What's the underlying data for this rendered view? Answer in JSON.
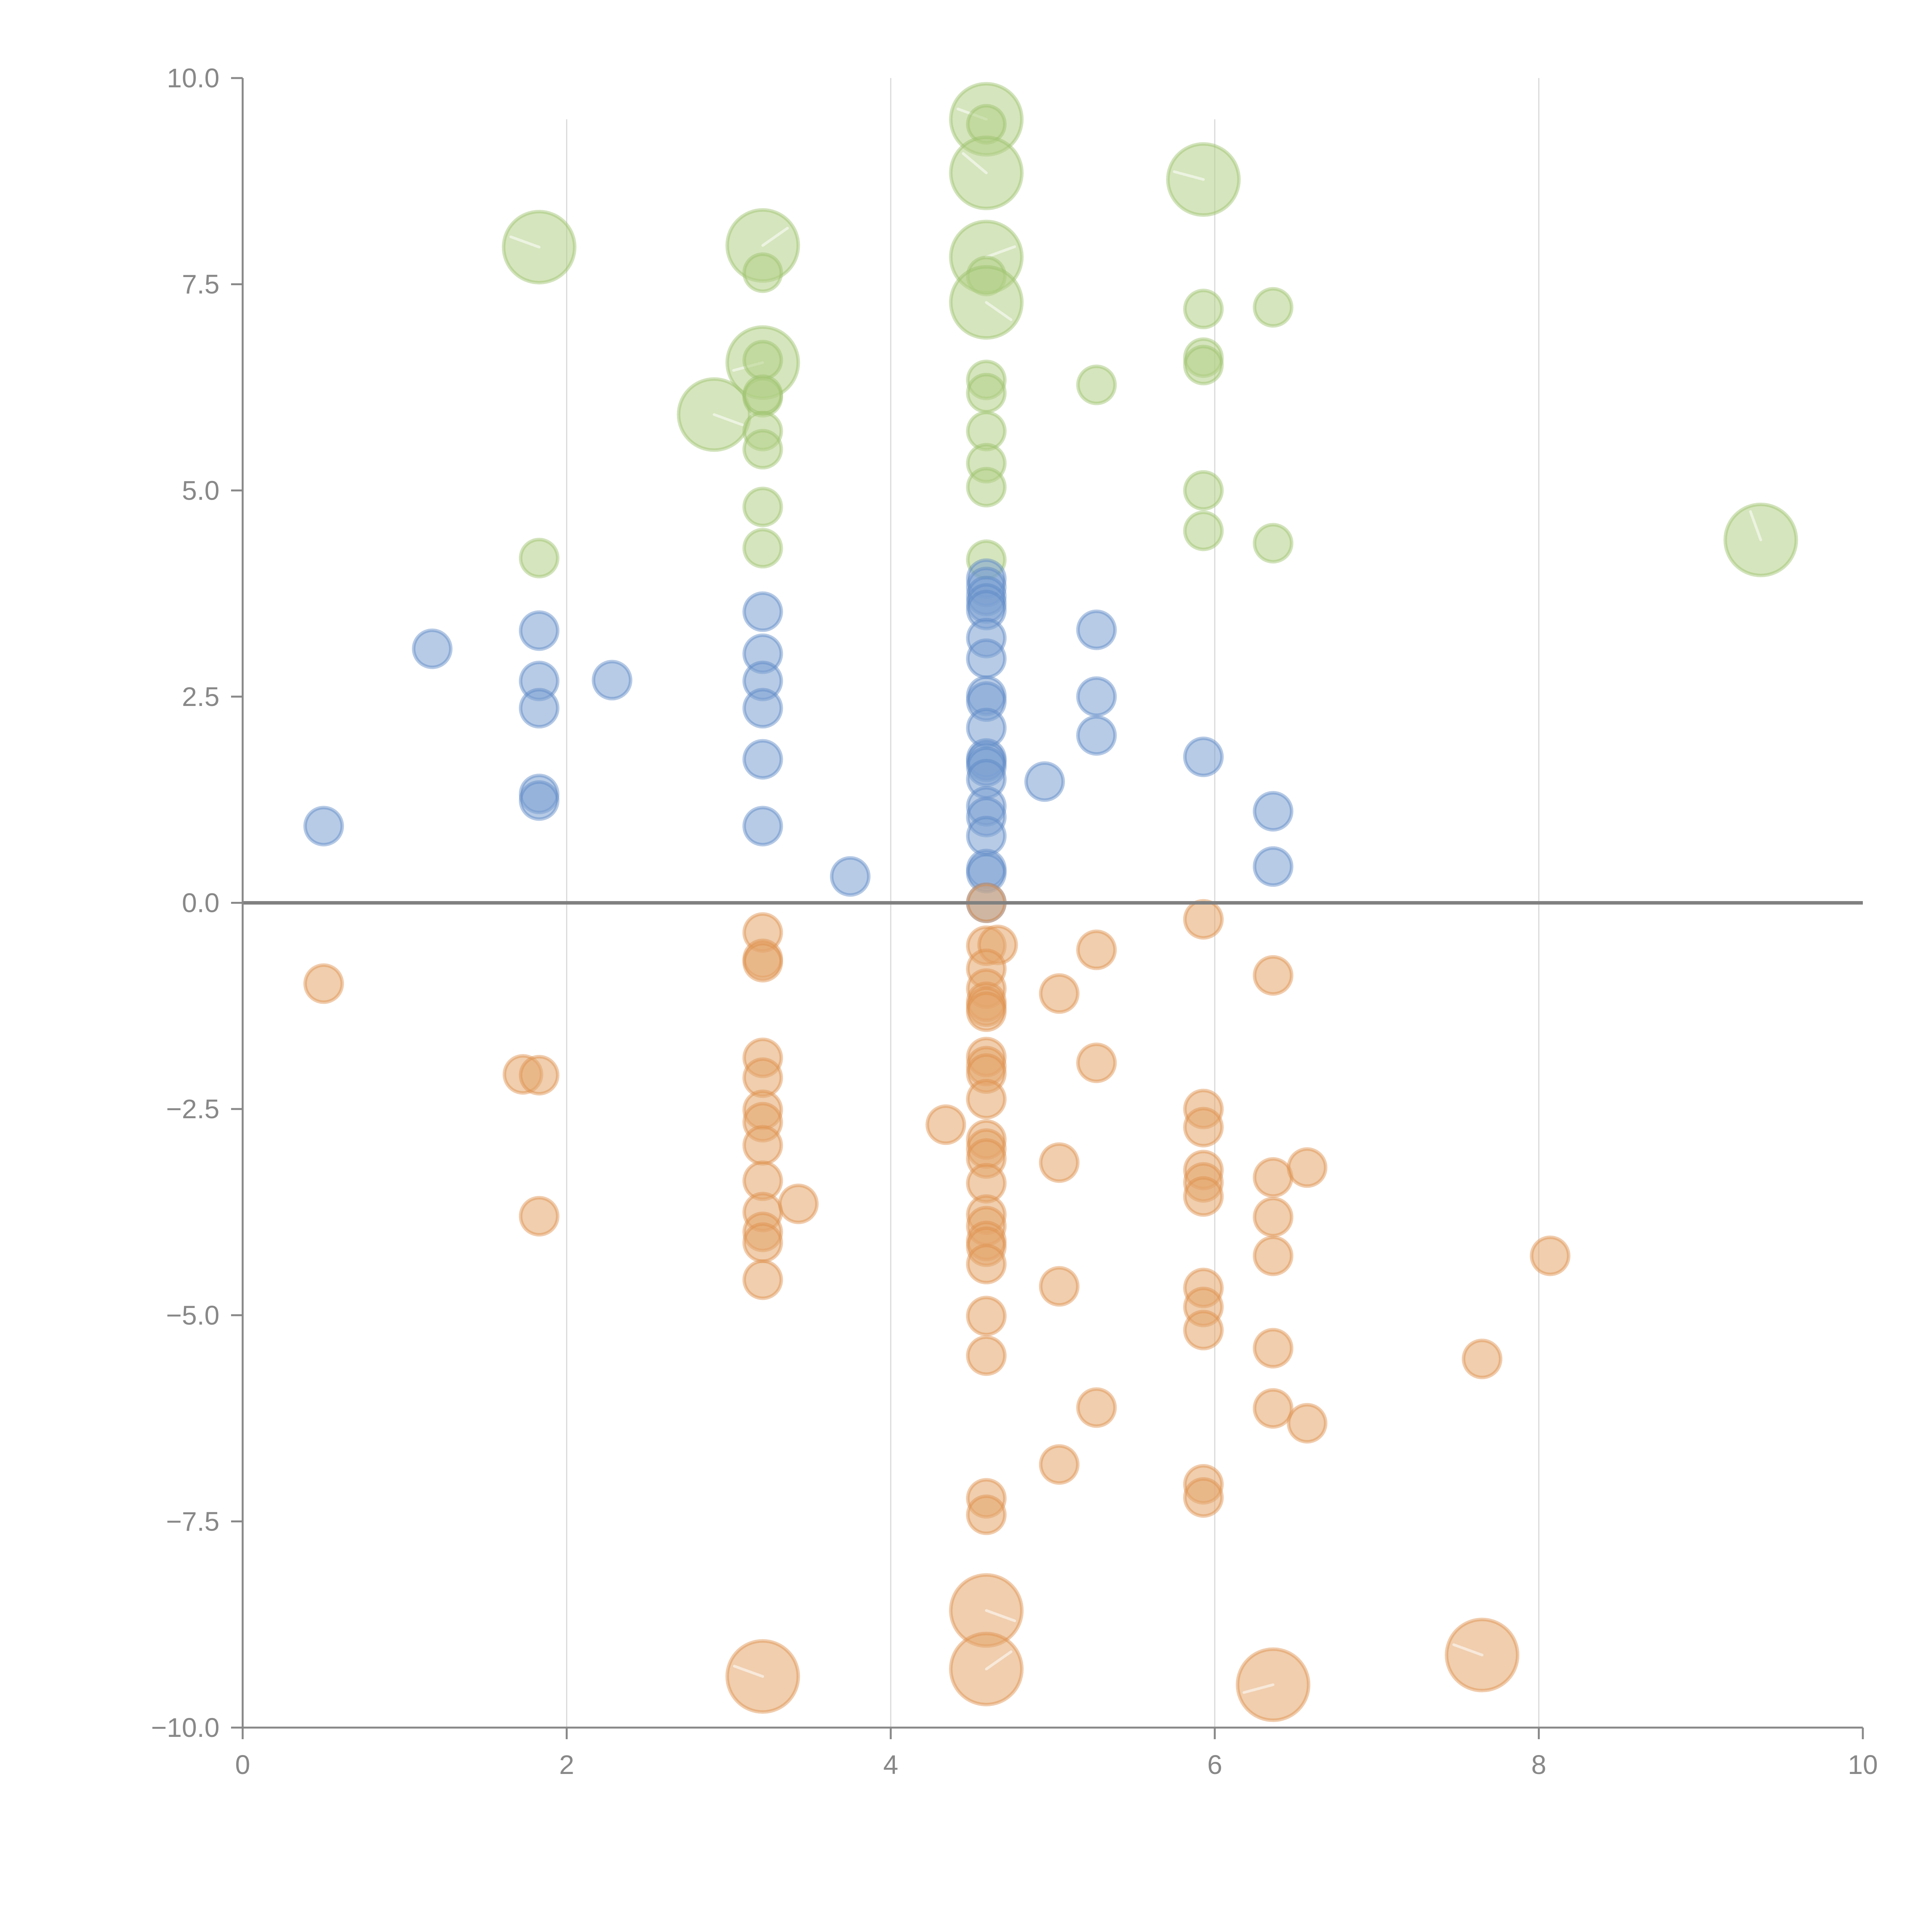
{
  "chart_data": {
    "type": "scatter",
    "title": "",
    "xlabel": "",
    "ylabel": "",
    "xlim": [
      0,
      10
    ],
    "ylim": [
      -10,
      10
    ],
    "grid": "vertical",
    "legend": "none",
    "x_ticks": [
      "0",
      "2",
      "4",
      "6",
      "8",
      "10"
    ],
    "x_tick_values": [
      0,
      2,
      4,
      6,
      8,
      10
    ],
    "y_ticks": [
      "10.0",
      "7.5",
      "5.0",
      "2.5",
      "0.0",
      "−2.5",
      "−5.0",
      "−7.5",
      "−10.0"
    ],
    "y_tick_values": [
      10,
      7.5,
      5,
      2.5,
      0,
      -2.5,
      -5,
      -7.5,
      -10
    ],
    "reference_line_y": 0,
    "colors": {
      "green": {
        "fill": "#b3cf86",
        "stroke": "#9cc16a"
      },
      "blue": {
        "fill": "#7ba0d2",
        "stroke": "#5a87c6"
      },
      "orange": {
        "fill": "#e4a56c",
        "stroke": "#de8e4a"
      }
    },
    "series": [
      {
        "name": "green",
        "points": [
          {
            "x": 1.83,
            "y": 7.95,
            "size": "large"
          },
          {
            "x": 1.83,
            "y": 4.18,
            "size": "small"
          },
          {
            "x": 2.91,
            "y": 5.92,
            "size": "large"
          },
          {
            "x": 3.21,
            "y": 7.97,
            "size": "large"
          },
          {
            "x": 3.21,
            "y": 7.64,
            "size": "small"
          },
          {
            "x": 3.21,
            "y": 6.55,
            "size": "large"
          },
          {
            "x": 3.21,
            "y": 6.58,
            "size": "small"
          },
          {
            "x": 3.21,
            "y": 6.13,
            "size": "small"
          },
          {
            "x": 3.21,
            "y": 6.16,
            "size": "small"
          },
          {
            "x": 3.21,
            "y": 5.72,
            "size": "small"
          },
          {
            "x": 3.21,
            "y": 5.5,
            "size": "small"
          },
          {
            "x": 3.21,
            "y": 4.8,
            "size": "small"
          },
          {
            "x": 3.21,
            "y": 4.3,
            "size": "small"
          },
          {
            "x": 4.59,
            "y": 9.5,
            "size": "large"
          },
          {
            "x": 4.59,
            "y": 9.44,
            "size": "small"
          },
          {
            "x": 4.59,
            "y": 8.85,
            "size": "large"
          },
          {
            "x": 4.59,
            "y": 7.83,
            "size": "large"
          },
          {
            "x": 4.59,
            "y": 7.6,
            "size": "small"
          },
          {
            "x": 4.59,
            "y": 7.28,
            "size": "large"
          },
          {
            "x": 4.59,
            "y": 6.34,
            "size": "small"
          },
          {
            "x": 4.59,
            "y": 6.18,
            "size": "small"
          },
          {
            "x": 4.59,
            "y": 5.72,
            "size": "small"
          },
          {
            "x": 4.59,
            "y": 5.33,
            "size": "small"
          },
          {
            "x": 4.59,
            "y": 5.04,
            "size": "small"
          },
          {
            "x": 4.59,
            "y": 4.16,
            "size": "small"
          },
          {
            "x": 5.27,
            "y": 6.28,
            "size": "small"
          },
          {
            "x": 5.93,
            "y": 8.77,
            "size": "large"
          },
          {
            "x": 5.93,
            "y": 7.2,
            "size": "small"
          },
          {
            "x": 5.93,
            "y": 6.61,
            "size": "small"
          },
          {
            "x": 5.93,
            "y": 6.52,
            "size": "small"
          },
          {
            "x": 5.93,
            "y": 5.0,
            "size": "small"
          },
          {
            "x": 5.93,
            "y": 4.51,
            "size": "small"
          },
          {
            "x": 6.36,
            "y": 7.22,
            "size": "small"
          },
          {
            "x": 6.36,
            "y": 4.36,
            "size": "small"
          },
          {
            "x": 9.37,
            "y": 4.4,
            "size": "large"
          }
        ]
      },
      {
        "name": "blue",
        "points": [
          {
            "x": 0.5,
            "y": 0.93,
            "size": "small"
          },
          {
            "x": 1.17,
            "y": 3.08,
            "size": "small"
          },
          {
            "x": 1.83,
            "y": 3.3,
            "size": "small"
          },
          {
            "x": 1.83,
            "y": 2.69,
            "size": "small"
          },
          {
            "x": 1.83,
            "y": 2.36,
            "size": "small"
          },
          {
            "x": 1.83,
            "y": 1.32,
            "size": "small"
          },
          {
            "x": 1.83,
            "y": 1.24,
            "size": "small"
          },
          {
            "x": 2.28,
            "y": 2.7,
            "size": "small"
          },
          {
            "x": 3.21,
            "y": 3.53,
            "size": "small"
          },
          {
            "x": 3.21,
            "y": 3.02,
            "size": "small"
          },
          {
            "x": 3.21,
            "y": 2.69,
            "size": "small"
          },
          {
            "x": 3.21,
            "y": 2.36,
            "size": "small"
          },
          {
            "x": 3.21,
            "y": 1.74,
            "size": "small"
          },
          {
            "x": 3.21,
            "y": 0.93,
            "size": "small"
          },
          {
            "x": 3.75,
            "y": 0.32,
            "size": "small"
          },
          {
            "x": 4.59,
            "y": 3.93,
            "size": "small"
          },
          {
            "x": 4.59,
            "y": 3.83,
            "size": "small"
          },
          {
            "x": 4.59,
            "y": 3.72,
            "size": "small"
          },
          {
            "x": 4.59,
            "y": 3.63,
            "size": "small"
          },
          {
            "x": 4.59,
            "y": 3.55,
            "size": "small"
          },
          {
            "x": 4.59,
            "y": 3.21,
            "size": "small"
          },
          {
            "x": 4.59,
            "y": 2.96,
            "size": "small"
          },
          {
            "x": 4.59,
            "y": 2.51,
            "size": "small"
          },
          {
            "x": 4.59,
            "y": 2.44,
            "size": "small"
          },
          {
            "x": 4.59,
            "y": 2.12,
            "size": "small"
          },
          {
            "x": 4.59,
            "y": 1.75,
            "size": "small"
          },
          {
            "x": 4.59,
            "y": 1.71,
            "size": "small"
          },
          {
            "x": 4.59,
            "y": 1.65,
            "size": "small"
          },
          {
            "x": 4.59,
            "y": 1.5,
            "size": "small"
          },
          {
            "x": 4.59,
            "y": 1.17,
            "size": "small"
          },
          {
            "x": 4.59,
            "y": 1.04,
            "size": "small"
          },
          {
            "x": 4.59,
            "y": 0.81,
            "size": "small"
          },
          {
            "x": 4.59,
            "y": 0.41,
            "size": "small"
          },
          {
            "x": 4.59,
            "y": 0.36,
            "size": "small"
          },
          {
            "x": 4.59,
            "y": 0.0,
            "size": "small"
          },
          {
            "x": 4.95,
            "y": 1.47,
            "size": "small"
          },
          {
            "x": 5.27,
            "y": 3.31,
            "size": "small"
          },
          {
            "x": 5.27,
            "y": 2.5,
            "size": "small"
          },
          {
            "x": 5.27,
            "y": 2.03,
            "size": "small"
          },
          {
            "x": 5.93,
            "y": 1.77,
            "size": "small"
          },
          {
            "x": 6.36,
            "y": 1.11,
            "size": "small"
          },
          {
            "x": 6.36,
            "y": 0.44,
            "size": "small"
          }
        ]
      },
      {
        "name": "orange",
        "points": [
          {
            "x": 0.5,
            "y": -0.98,
            "size": "small"
          },
          {
            "x": 1.73,
            "y": -2.08,
            "size": "small"
          },
          {
            "x": 1.83,
            "y": -2.09,
            "size": "small"
          },
          {
            "x": 1.83,
            "y": -3.8,
            "size": "small"
          },
          {
            "x": 3.21,
            "y": -0.36,
            "size": "small"
          },
          {
            "x": 3.21,
            "y": -0.68,
            "size": "small"
          },
          {
            "x": 3.21,
            "y": -0.72,
            "size": "small"
          },
          {
            "x": 3.21,
            "y": -1.88,
            "size": "small"
          },
          {
            "x": 3.21,
            "y": -2.12,
            "size": "small"
          },
          {
            "x": 3.21,
            "y": -2.51,
            "size": "small"
          },
          {
            "x": 3.21,
            "y": -2.66,
            "size": "small"
          },
          {
            "x": 3.21,
            "y": -2.94,
            "size": "small"
          },
          {
            "x": 3.21,
            "y": -3.37,
            "size": "small"
          },
          {
            "x": 3.21,
            "y": -3.75,
            "size": "small"
          },
          {
            "x": 3.21,
            "y": -3.99,
            "size": "small"
          },
          {
            "x": 3.21,
            "y": -4.12,
            "size": "small"
          },
          {
            "x": 3.21,
            "y": -4.57,
            "size": "small"
          },
          {
            "x": 3.21,
            "y": -9.38,
            "size": "large"
          },
          {
            "x": 3.43,
            "y": -3.65,
            "size": "small"
          },
          {
            "x": 4.34,
            "y": -2.69,
            "size": "small"
          },
          {
            "x": 4.59,
            "y": 0.0,
            "size": "small"
          },
          {
            "x": 4.59,
            "y": -0.52,
            "size": "small"
          },
          {
            "x": 4.66,
            "y": -0.51,
            "size": "small"
          },
          {
            "x": 4.59,
            "y": -0.8,
            "size": "small"
          },
          {
            "x": 4.59,
            "y": -1.04,
            "size": "small"
          },
          {
            "x": 4.59,
            "y": -1.2,
            "size": "small"
          },
          {
            "x": 4.59,
            "y": -1.26,
            "size": "small"
          },
          {
            "x": 4.59,
            "y": -1.32,
            "size": "small"
          },
          {
            "x": 4.59,
            "y": -1.87,
            "size": "small"
          },
          {
            "x": 4.59,
            "y": -1.98,
            "size": "small"
          },
          {
            "x": 4.59,
            "y": -2.07,
            "size": "small"
          },
          {
            "x": 4.59,
            "y": -2.38,
            "size": "small"
          },
          {
            "x": 4.59,
            "y": -2.87,
            "size": "small"
          },
          {
            "x": 4.59,
            "y": -2.98,
            "size": "small"
          },
          {
            "x": 4.59,
            "y": -3.1,
            "size": "small"
          },
          {
            "x": 4.59,
            "y": -3.4,
            "size": "small"
          },
          {
            "x": 4.59,
            "y": -3.78,
            "size": "small"
          },
          {
            "x": 4.59,
            "y": -3.92,
            "size": "small"
          },
          {
            "x": 4.59,
            "y": -4.1,
            "size": "small"
          },
          {
            "x": 4.59,
            "y": -4.17,
            "size": "small"
          },
          {
            "x": 4.59,
            "y": -4.38,
            "size": "small"
          },
          {
            "x": 4.59,
            "y": -5.01,
            "size": "small"
          },
          {
            "x": 4.59,
            "y": -5.49,
            "size": "small"
          },
          {
            "x": 4.59,
            "y": -7.22,
            "size": "small"
          },
          {
            "x": 4.59,
            "y": -7.42,
            "size": "small"
          },
          {
            "x": 4.59,
            "y": -8.58,
            "size": "large"
          },
          {
            "x": 4.59,
            "y": -9.29,
            "size": "large"
          },
          {
            "x": 5.04,
            "y": -1.1,
            "size": "small"
          },
          {
            "x": 5.04,
            "y": -3.15,
            "size": "small"
          },
          {
            "x": 5.04,
            "y": -4.65,
            "size": "small"
          },
          {
            "x": 5.04,
            "y": -6.81,
            "size": "small"
          },
          {
            "x": 5.27,
            "y": -0.57,
            "size": "small"
          },
          {
            "x": 5.27,
            "y": -1.94,
            "size": "small"
          },
          {
            "x": 5.27,
            "y": -6.12,
            "size": "small"
          },
          {
            "x": 5.93,
            "y": -0.2,
            "size": "small"
          },
          {
            "x": 5.93,
            "y": -2.5,
            "size": "small"
          },
          {
            "x": 5.93,
            "y": -2.72,
            "size": "small"
          },
          {
            "x": 5.93,
            "y": -3.24,
            "size": "small"
          },
          {
            "x": 5.93,
            "y": -3.39,
            "size": "small"
          },
          {
            "x": 5.93,
            "y": -3.56,
            "size": "small"
          },
          {
            "x": 5.93,
            "y": -4.67,
            "size": "small"
          },
          {
            "x": 5.93,
            "y": -4.9,
            "size": "small"
          },
          {
            "x": 5.93,
            "y": -5.18,
            "size": "small"
          },
          {
            "x": 5.93,
            "y": -7.05,
            "size": "small"
          },
          {
            "x": 5.93,
            "y": -7.21,
            "size": "small"
          },
          {
            "x": 6.36,
            "y": -0.88,
            "size": "small"
          },
          {
            "x": 6.36,
            "y": -3.33,
            "size": "small"
          },
          {
            "x": 6.36,
            "y": -3.81,
            "size": "small"
          },
          {
            "x": 6.36,
            "y": -4.28,
            "size": "small"
          },
          {
            "x": 6.36,
            "y": -5.4,
            "size": "small"
          },
          {
            "x": 6.36,
            "y": -6.13,
            "size": "small"
          },
          {
            "x": 6.36,
            "y": -9.48,
            "size": "large"
          },
          {
            "x": 6.57,
            "y": -3.21,
            "size": "small"
          },
          {
            "x": 6.57,
            "y": -6.31,
            "size": "small"
          },
          {
            "x": 7.65,
            "y": -5.53,
            "size": "small"
          },
          {
            "x": 7.65,
            "y": -9.12,
            "size": "large"
          },
          {
            "x": 8.07,
            "y": -4.28,
            "size": "small"
          }
        ]
      }
    ]
  }
}
